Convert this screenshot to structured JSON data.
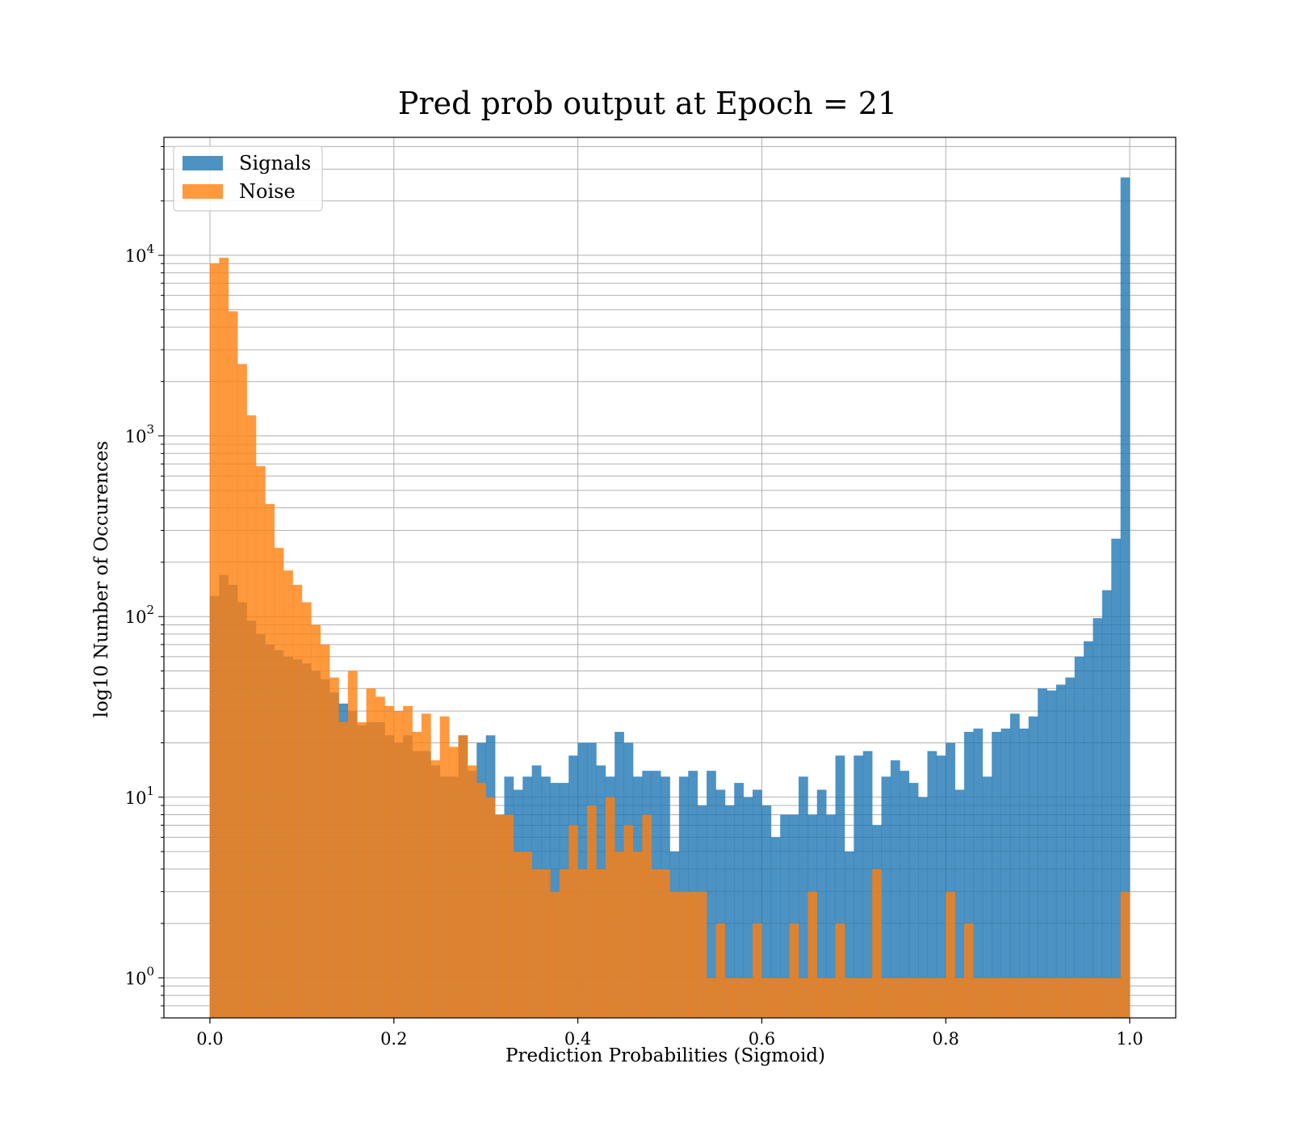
{
  "chart_data": {
    "type": "bar",
    "title": "Pred prob output at Epoch = 21",
    "xlabel": "Prediction Probabilities (Sigmoid)",
    "ylabel": "log10 Number of Occurences",
    "yscale": "log",
    "xlim": [
      -0.05,
      1.05
    ],
    "ylim": [
      0.6,
      45000
    ],
    "grid": true,
    "legend_position": "upper left",
    "x_ticks": [
      "0.0",
      "0.2",
      "0.4",
      "0.6",
      "0.8",
      "1.0"
    ],
    "y_ticks": [
      {
        "base": "10",
        "exp": "0"
      },
      {
        "base": "10",
        "exp": "1"
      },
      {
        "base": "10",
        "exp": "2"
      },
      {
        "base": "10",
        "exp": "3"
      },
      {
        "base": "10",
        "exp": "4"
      }
    ],
    "bins": 100,
    "bin_range": [
      0,
      1
    ],
    "series": [
      {
        "name": "Signals",
        "color": "#1f77b4",
        "values": [
          130,
          170,
          150,
          120,
          95,
          80,
          70,
          65,
          60,
          58,
          55,
          50,
          45,
          38,
          33,
          30,
          25,
          26,
          26,
          22,
          20,
          22,
          18,
          18,
          15,
          13,
          13,
          22,
          14,
          20,
          22,
          8,
          13,
          11,
          13,
          15,
          13,
          12,
          12,
          17,
          20,
          20,
          15,
          13,
          23,
          20,
          13,
          14,
          14,
          13,
          5,
          13,
          14,
          9,
          14,
          11,
          9,
          12,
          10,
          11,
          9,
          6,
          8,
          8,
          13,
          8,
          11,
          8,
          17,
          5,
          17,
          18,
          7,
          13,
          16,
          14,
          12,
          10,
          18,
          17,
          20,
          11,
          23,
          24,
          13,
          23,
          24,
          29,
          24,
          28,
          40,
          39,
          42,
          46,
          60,
          73,
          98,
          140,
          270,
          27000
        ]
      },
      {
        "name": "Noise",
        "color": "#ff7f0e",
        "values": [
          9000,
          9700,
          4900,
          2500,
          1300,
          680,
          420,
          240,
          180,
          150,
          120,
          90,
          70,
          46,
          26,
          50,
          26,
          40,
          36,
          32,
          30,
          32,
          23,
          29,
          16,
          28,
          19,
          22,
          15,
          12,
          10,
          8,
          8,
          5,
          5,
          4,
          4,
          3,
          4,
          7,
          4,
          9,
          4,
          10,
          5,
          7,
          5,
          8,
          4,
          4,
          3,
          3,
          3,
          3,
          1,
          2,
          1,
          1,
          1,
          2,
          1,
          1,
          1,
          2,
          1,
          3,
          1,
          1,
          2,
          1,
          1,
          1,
          4,
          1,
          1,
          1,
          1,
          1,
          1,
          1,
          3,
          1,
          2,
          1,
          1,
          1,
          1,
          1,
          1,
          1,
          1,
          1,
          1,
          1,
          1,
          1,
          1,
          1,
          1,
          3
        ]
      }
    ]
  }
}
